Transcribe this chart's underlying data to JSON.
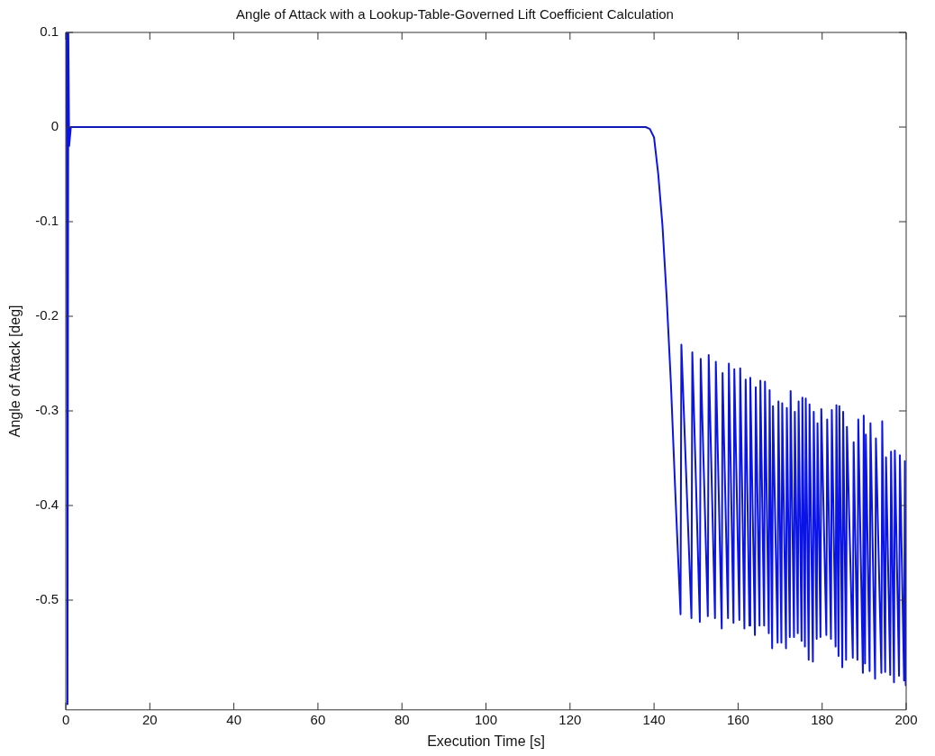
{
  "chart_data": {
    "type": "line",
    "title": "Angle of Attack with a Lookup-Table-Governed Lift Coefficient Calculation",
    "xlabel": "Execution Time [s]",
    "ylabel": "Angle of Attack [deg]",
    "xlim": [
      0,
      200
    ],
    "xticks": [
      0,
      20,
      40,
      60,
      80,
      100,
      120,
      140,
      160,
      180,
      200
    ],
    "ylim": [
      -0.616,
      0.1
    ],
    "yticks": [
      0.1,
      0,
      -0.1,
      -0.2,
      -0.3,
      -0.4,
      -0.5
    ],
    "grid": false,
    "legend": false,
    "marker": "none",
    "line_style": "solid",
    "series": [
      {
        "color": "#0a14e6",
        "x": [
          0,
          0.2,
          0.4,
          0.6,
          0.8,
          1.2,
          138,
          139,
          140,
          141,
          142,
          143,
          144,
          145,
          146.3,
          146.5,
          148.9,
          149.1,
          150.9,
          151.1,
          152.8,
          153,
          154.5,
          154.7,
          156.1,
          156.3,
          157.6,
          157.8,
          158.9,
          159.1,
          160.3,
          160.5,
          161.5,
          161.8,
          162.7,
          162.9,
          164,
          164.2,
          165.1,
          165.3,
          166.2,
          166.4,
          167.3,
          167.5,
          168.1,
          168.3,
          169.4,
          169.6,
          170.3,
          170.5,
          171.4,
          171.6,
          172.3,
          172.5,
          173.3,
          173.5,
          174.2,
          174.4,
          175.1,
          175.3,
          175.9,
          176.1,
          176.8,
          177,
          177.8,
          178,
          178.7,
          178.9,
          179.6,
          179.8,
          181,
          181.2,
          182.1,
          182.3,
          183.2,
          183.4,
          183.9,
          184.1,
          184.8,
          185,
          185.7,
          185.9,
          187.3,
          187.5,
          188.4,
          188.6,
          189.7,
          189.9,
          190.2,
          190.4,
          191.3,
          191.5,
          192.6,
          192.8,
          194.1,
          194.3,
          195,
          195.2,
          196.2,
          196.4,
          197.1,
          197.3,
          198.3,
          198.5,
          199.5,
          199.7,
          199.9,
          200
        ],
        "values": [
          0,
          0.1,
          -0.61,
          0.1,
          -0.02,
          0,
          0,
          -0.002,
          -0.011,
          -0.05,
          -0.104,
          -0.18,
          -0.27,
          -0.38,
          -0.515,
          -0.23,
          -0.519,
          -0.238,
          -0.523,
          -0.245,
          -0.517,
          -0.241,
          -0.519,
          -0.248,
          -0.53,
          -0.26,
          -0.519,
          -0.25,
          -0.524,
          -0.256,
          -0.521,
          -0.255,
          -0.53,
          -0.267,
          -0.527,
          -0.265,
          -0.537,
          -0.275,
          -0.527,
          -0.268,
          -0.527,
          -0.269,
          -0.535,
          -0.278,
          -0.551,
          -0.295,
          -0.545,
          -0.29,
          -0.545,
          -0.292,
          -0.551,
          -0.297,
          -0.539,
          -0.279,
          -0.539,
          -0.301,
          -0.535,
          -0.29,
          -0.543,
          -0.286,
          -0.549,
          -0.287,
          -0.563,
          -0.293,
          -0.565,
          -0.301,
          -0.541,
          -0.313,
          -0.539,
          -0.298,
          -0.537,
          -0.309,
          -0.541,
          -0.299,
          -0.549,
          -0.294,
          -0.559,
          -0.295,
          -0.571,
          -0.301,
          -0.563,
          -0.317,
          -0.561,
          -0.333,
          -0.563,
          -0.309,
          -0.577,
          -0.305,
          -0.567,
          -0.325,
          -0.575,
          -0.313,
          -0.583,
          -0.329,
          -0.577,
          -0.311,
          -0.576,
          -0.349,
          -0.579,
          -0.343,
          -0.587,
          -0.342,
          -0.58,
          -0.347,
          -0.585,
          -0.353,
          -0.59,
          -0.45
        ]
      }
    ]
  }
}
